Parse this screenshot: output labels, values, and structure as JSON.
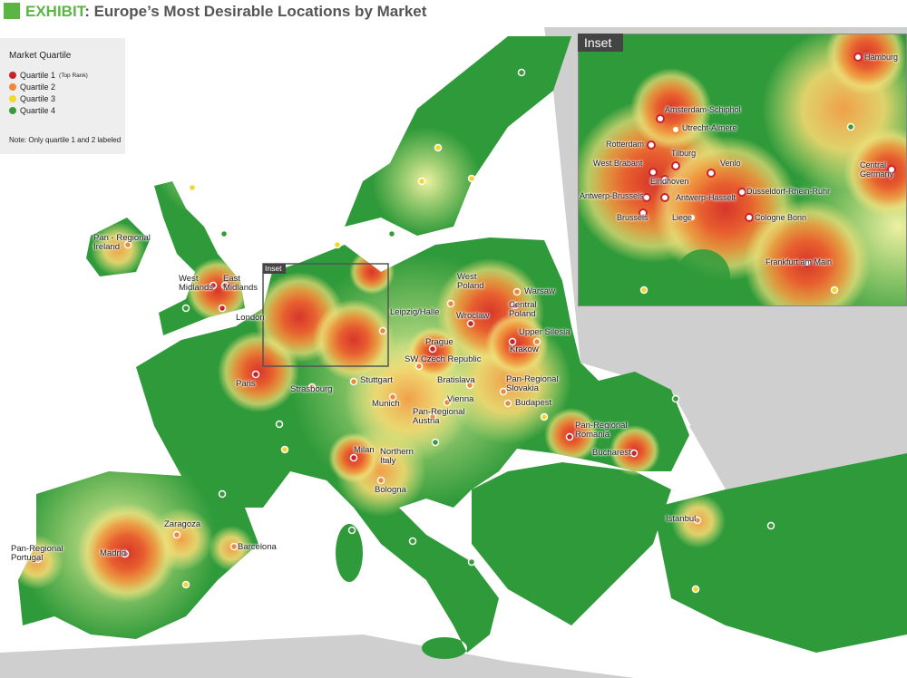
{
  "header": {
    "tag": "EXHIBIT",
    "title": ": Europe’s Most Desirable Locations by Market"
  },
  "legend": {
    "title": "Market Quartile",
    "items": [
      {
        "name": "Quartile 1",
        "note": "(Top Rank)",
        "color": "#c8232c"
      },
      {
        "name": "Quartile 2",
        "color": "#f0883a"
      },
      {
        "name": "Quartile 3",
        "color": "#f2d72c"
      },
      {
        "name": "Quartile 4",
        "color": "#3a9a3a"
      }
    ],
    "note": "Note: Only quartile 1 and 2 labeled"
  },
  "map": {
    "inset_marker": "Inset",
    "locations": [
      [
        "West\nMidlands",
        "East\nMidlands",
        "London",
        "Paris",
        "Madrid",
        "Milan",
        "Wroclaw",
        "Central\nPoland",
        "Krakow",
        "Prague",
        "Pan-Regional\nRomania",
        "Bucharest"
      ],
      [
        "Pan - Regional\nIreland",
        "Pan-Regional\nPortugal",
        "Zaragoza",
        "Barcelona",
        "Strasbourg",
        "Stuttgart",
        "Munich",
        "Leipzig/Halle",
        "West\nPoland",
        "Warsaw",
        "Upper Silesia",
        "SW Czech Republic",
        "Bratislava",
        "Vienna",
        "Pan-Regional\nAustria",
        "Pan-Regional\nSlovakia",
        "Budapest",
        "Northern\nItaly",
        "Bologna",
        "Istanbul"
      ]
    ],
    "inset": {
      "title": "Inset",
      "locations": [
        [
          "Amsterdam-Schiphol",
          "Rotterdam",
          "West Brabant",
          "Tilburg",
          "Eindhoven",
          "Venlo",
          "Antwerp-Brussels",
          "Antwerp-Hasselt",
          "Brussels",
          "Düsseldorf-Rhein-Ruhr",
          "Cologne Bonn",
          "Frankfurt am Main",
          "Hamburg",
          "Central\nGermany"
        ],
        [
          "Utrecht-Almere",
          "Liege"
        ]
      ]
    }
  }
}
